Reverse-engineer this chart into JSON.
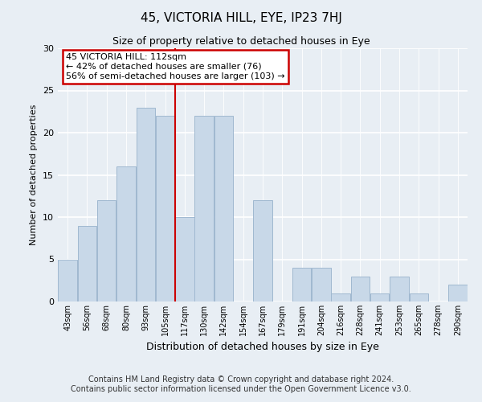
{
  "title": "45, VICTORIA HILL, EYE, IP23 7HJ",
  "subtitle": "Size of property relative to detached houses in Eye",
  "xlabel": "Distribution of detached houses by size in Eye",
  "ylabel": "Number of detached properties",
  "bar_color": "#c8d8e8",
  "bar_edge_color": "#a0b8d0",
  "categories": [
    "43sqm",
    "56sqm",
    "68sqm",
    "80sqm",
    "93sqm",
    "105sqm",
    "117sqm",
    "130sqm",
    "142sqm",
    "154sqm",
    "167sqm",
    "179sqm",
    "191sqm",
    "204sqm",
    "216sqm",
    "228sqm",
    "241sqm",
    "253sqm",
    "265sqm",
    "278sqm",
    "290sqm"
  ],
  "values": [
    5,
    9,
    12,
    16,
    23,
    22,
    10,
    22,
    22,
    0,
    12,
    0,
    4,
    4,
    1,
    3,
    1,
    3,
    1,
    0,
    2
  ],
  "ylim": [
    0,
    30
  ],
  "yticks": [
    0,
    5,
    10,
    15,
    20,
    25,
    30
  ],
  "property_line_x": 6,
  "property_label": "45 VICTORIA HILL: 112sqm",
  "annotation_line1": "← 42% of detached houses are smaller (76)",
  "annotation_line2": "56% of semi-detached houses are larger (103) →",
  "annotation_box_color": "white",
  "annotation_box_edge_color": "#cc0000",
  "property_line_color": "#cc0000",
  "footer1": "Contains HM Land Registry data © Crown copyright and database right 2024.",
  "footer2": "Contains public sector information licensed under the Open Government Licence v3.0.",
  "bg_color": "#e8eef4",
  "plot_bg_color": "#e8eef4",
  "grid_color": "#ffffff",
  "title_fontsize": 11,
  "subtitle_fontsize": 9,
  "xlabel_fontsize": 9,
  "ylabel_fontsize": 8,
  "tick_fontsize": 7,
  "footer_fontsize": 7,
  "annot_fontsize": 8
}
